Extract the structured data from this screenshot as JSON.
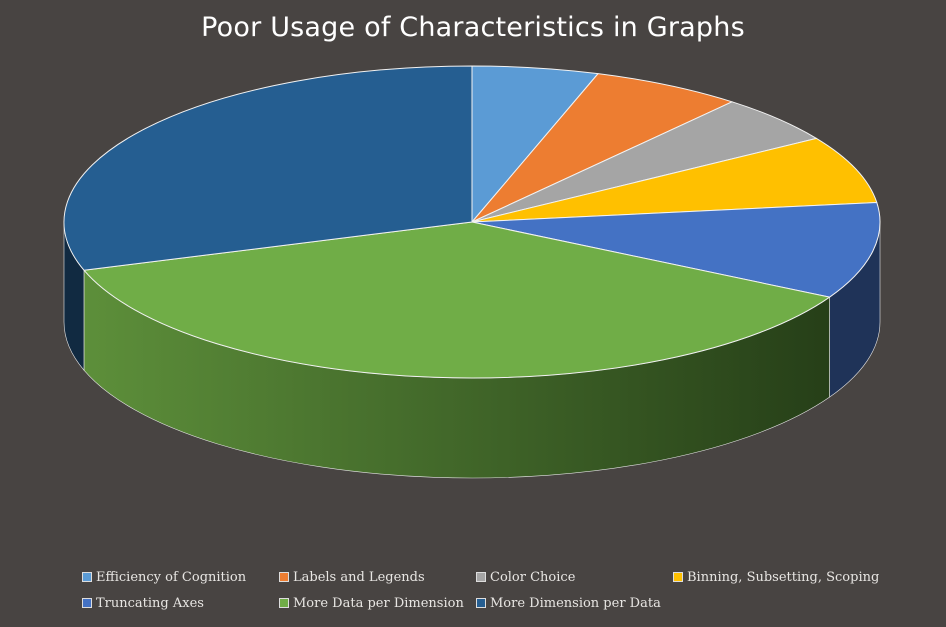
{
  "chart_data": {
    "type": "pie",
    "title": "Poor Usage of Characteristics in Graphs",
    "slices": [
      {
        "name": "Efficiency of Cognition",
        "value": 5,
        "color": "#5B9BD5"
      },
      {
        "name": "Labels and  Legends",
        "value": 6,
        "color": "#ED7D31"
      },
      {
        "name": "Color Choice",
        "value": 5,
        "color": "#A5A5A5"
      },
      {
        "name": "Binning, Subsetting, Scoping",
        "value": 7,
        "color": "#FFC000"
      },
      {
        "name": "Truncating Axes",
        "value": 10,
        "color": "#4472C4"
      },
      {
        "name": "More Data per Dimension",
        "value": 37,
        "color": "#70AD47"
      },
      {
        "name": "More Dimension per Data",
        "value": 30,
        "color": "#255E91"
      }
    ],
    "legend_position": "bottom",
    "style": "3d"
  }
}
